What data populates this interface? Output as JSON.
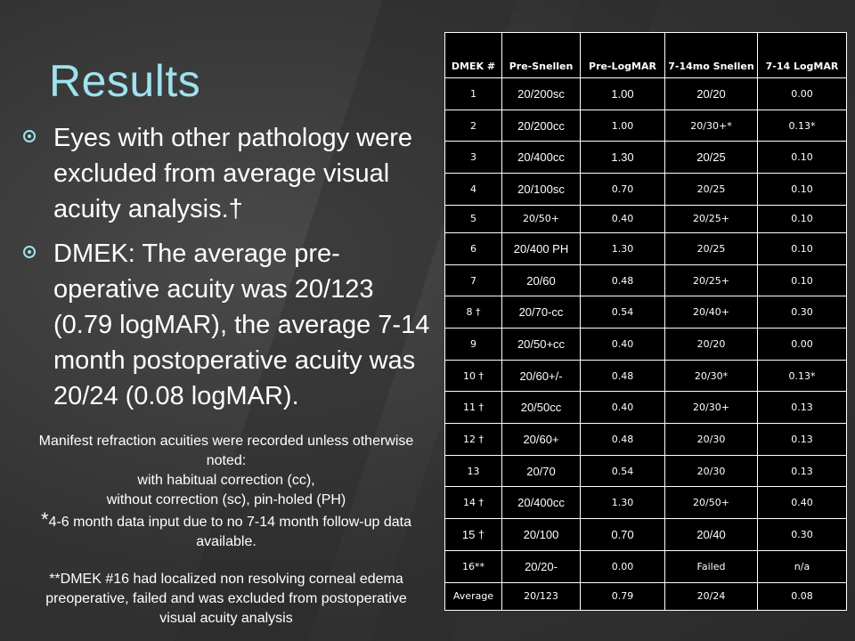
{
  "slide": {
    "title": "Results",
    "bullets": [
      "Eyes with other pathology were excluded from average visual acuity analysis.†",
      "DMEK: The average pre-operative acuity was 20/123 (0.79 logMAR), the average 7-14 month postoperative acuity was 20/24 (0.08 logMAR)."
    ],
    "notes": {
      "line1": "Manifest refraction acuities were recorded unless otherwise noted:",
      "line2": "with habitual correction (cc),",
      "line3": "without correction (sc), pin-holed (PH)",
      "star": "*",
      "line4": "4-6 month data input due to no 7-14 month follow-up data available.",
      "line5": "**DMEK #16 had localized non resolving corneal edema preoperative, failed and was excluded from postoperative visual acuity analysis"
    }
  },
  "table": {
    "headers": [
      "DMEK #",
      "Pre-Snellen",
      "Pre-LogMAR",
      "7-14mo Snellen",
      "7-14 LogMAR"
    ],
    "rows": [
      [
        "1",
        "20/200sc",
        "1.00",
        "20/20",
        "0.00"
      ],
      [
        "2",
        "20/200cc",
        "1.00",
        "20/30+*",
        "0.13*"
      ],
      [
        "3",
        "20/400cc",
        "1.30",
        "20/25",
        "0.10"
      ],
      [
        "4",
        "20/100sc",
        "0.70",
        "20/25",
        "0.10"
      ],
      [
        "5",
        "20/50+",
        "0.40",
        "20/25+",
        "0.10"
      ],
      [
        "6",
        "20/400 PH",
        "1.30",
        "20/25",
        "0.10"
      ],
      [
        "7",
        "20/60",
        "0.48",
        "20/25+",
        "0.10"
      ],
      [
        "8 †",
        "20/70-cc",
        "0.54",
        "20/40+",
        "0.30"
      ],
      [
        "9",
        "20/50+cc",
        "0.40",
        "20/20",
        "0.00"
      ],
      [
        "10 †",
        "20/60+/-",
        "0.48",
        "20/30*",
        "0.13*"
      ],
      [
        "11 †",
        "20/50cc",
        "0.40",
        "20/30+",
        "0.13"
      ],
      [
        "12 †",
        "20/60+",
        "0.48",
        "20/30",
        "0.13"
      ],
      [
        "13",
        "20/70",
        "0.54",
        "20/30",
        "0.13"
      ],
      [
        "14 †",
        "20/400cc",
        "1.30",
        "20/50+",
        "0.40"
      ],
      [
        "15 †",
        "20/100",
        "0.70",
        "20/40",
        "0.30"
      ],
      [
        "16**",
        "20/20-",
        "0.00",
        "Failed",
        "n/a"
      ],
      [
        "Average",
        "20/123",
        "0.79",
        "20/24",
        "0.08"
      ]
    ],
    "big_cells": [
      [
        0,
        1
      ],
      [
        0,
        2
      ],
      [
        0,
        3
      ],
      [
        1,
        1
      ],
      [
        2,
        1
      ],
      [
        2,
        2
      ],
      [
        2,
        3
      ],
      [
        3,
        1
      ],
      [
        5,
        1
      ],
      [
        6,
        1
      ],
      [
        7,
        1
      ],
      [
        8,
        1
      ],
      [
        9,
        1
      ],
      [
        10,
        1
      ],
      [
        11,
        1
      ],
      [
        12,
        1
      ],
      [
        13,
        1
      ],
      [
        14,
        0
      ],
      [
        14,
        1
      ],
      [
        14,
        2
      ],
      [
        14,
        3
      ],
      [
        15,
        1
      ]
    ]
  }
}
